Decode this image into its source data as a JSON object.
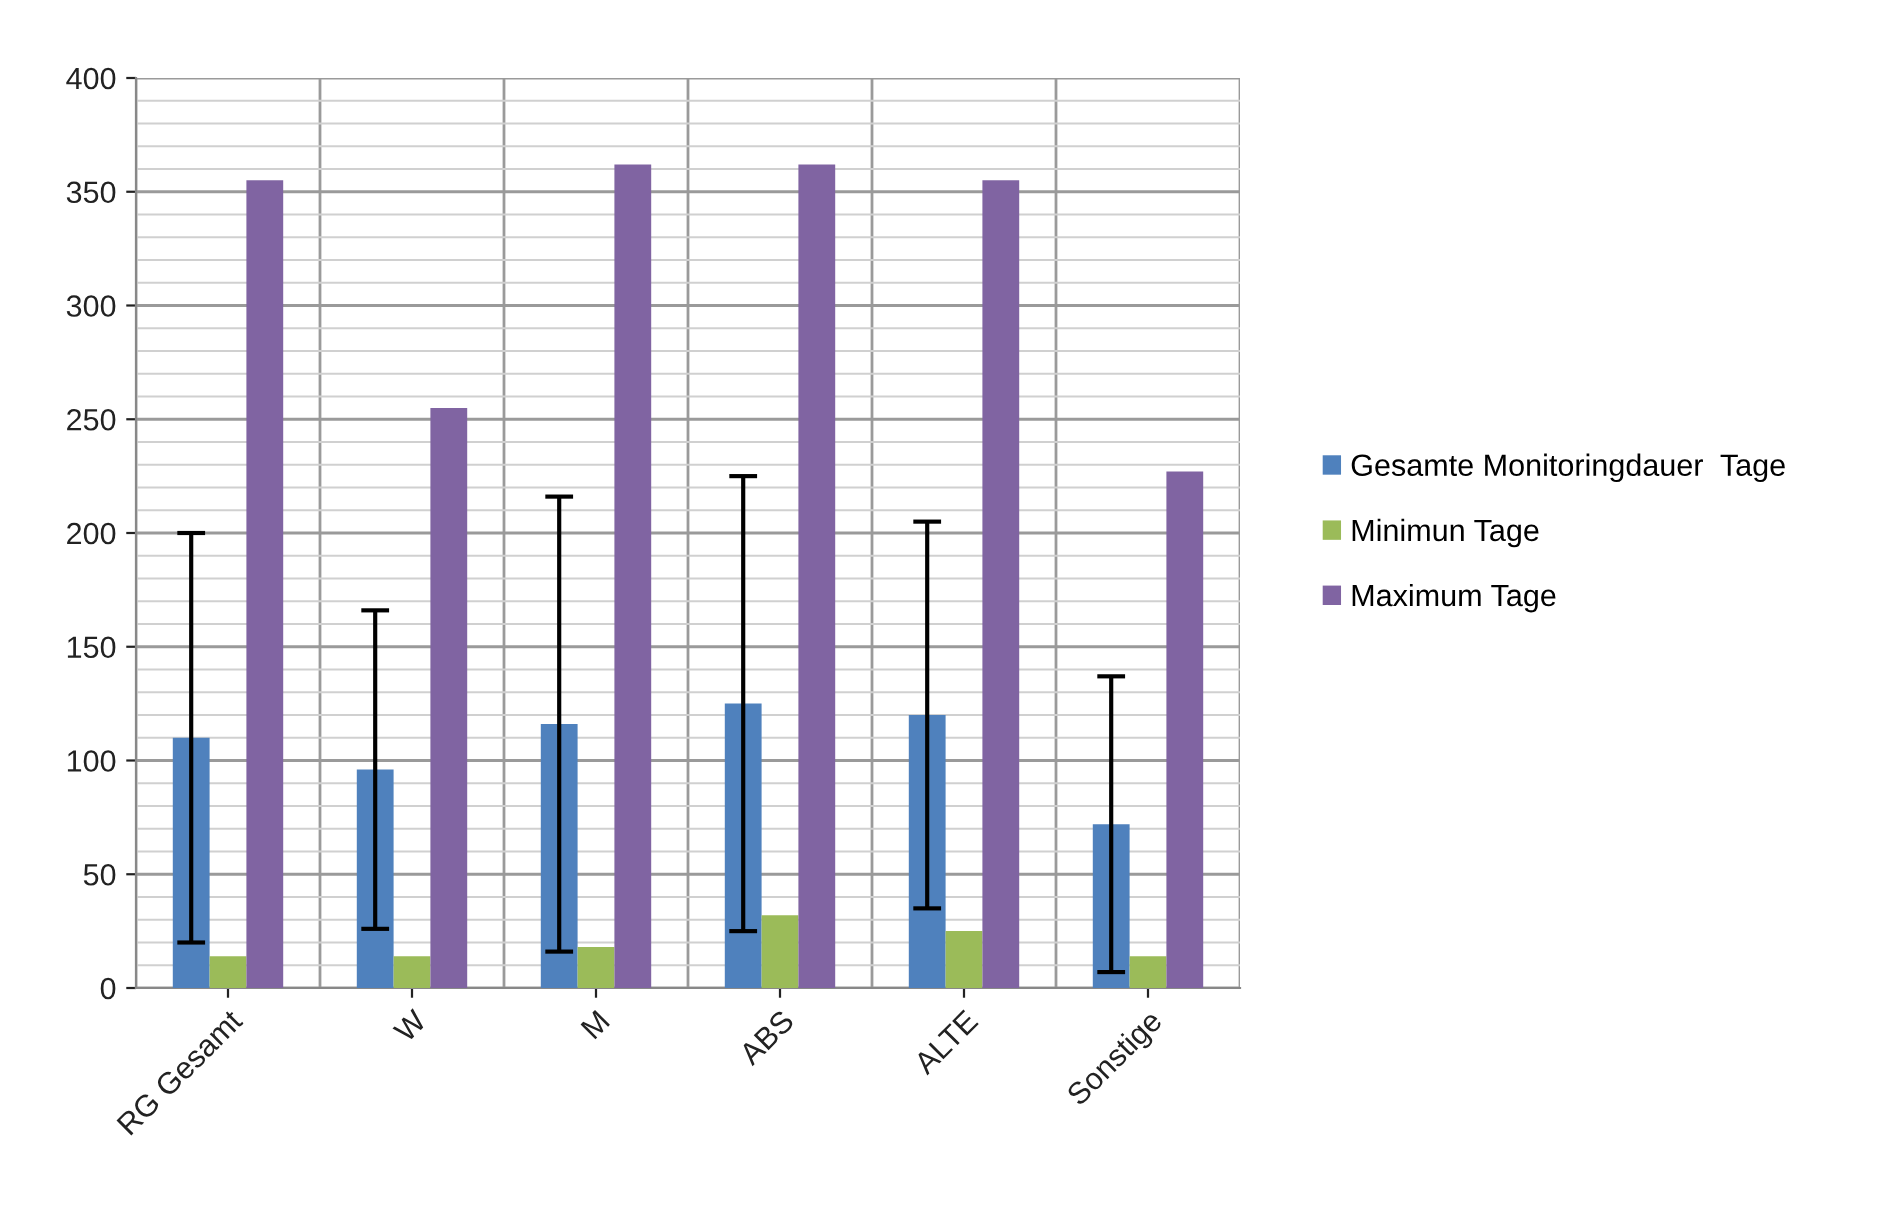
{
  "chart_data": {
    "type": "bar",
    "categories": [
      "RG Gesamt",
      "W",
      "M",
      "ABS",
      "ALTE",
      "Sonstige"
    ],
    "series": [
      {
        "name": "Gesamte Monitoringdauer  Tage",
        "color": "#4f81bd",
        "values": [
          110,
          96,
          116,
          125,
          120,
          72
        ],
        "errors": [
          90,
          70,
          100,
          100,
          85,
          65
        ]
      },
      {
        "name": "Minimun Tage",
        "color": "#9bbb59",
        "values": [
          14,
          14,
          18,
          32,
          25,
          14
        ]
      },
      {
        "name": "Maximum Tage",
        "color": "#8064a2",
        "values": [
          355,
          255,
          362,
          362,
          355,
          227
        ]
      }
    ],
    "ylim": [
      0,
      400
    ],
    "yticks": [
      0,
      50,
      100,
      150,
      200,
      250,
      300,
      350,
      400
    ],
    "grid": true,
    "legend": "right"
  }
}
